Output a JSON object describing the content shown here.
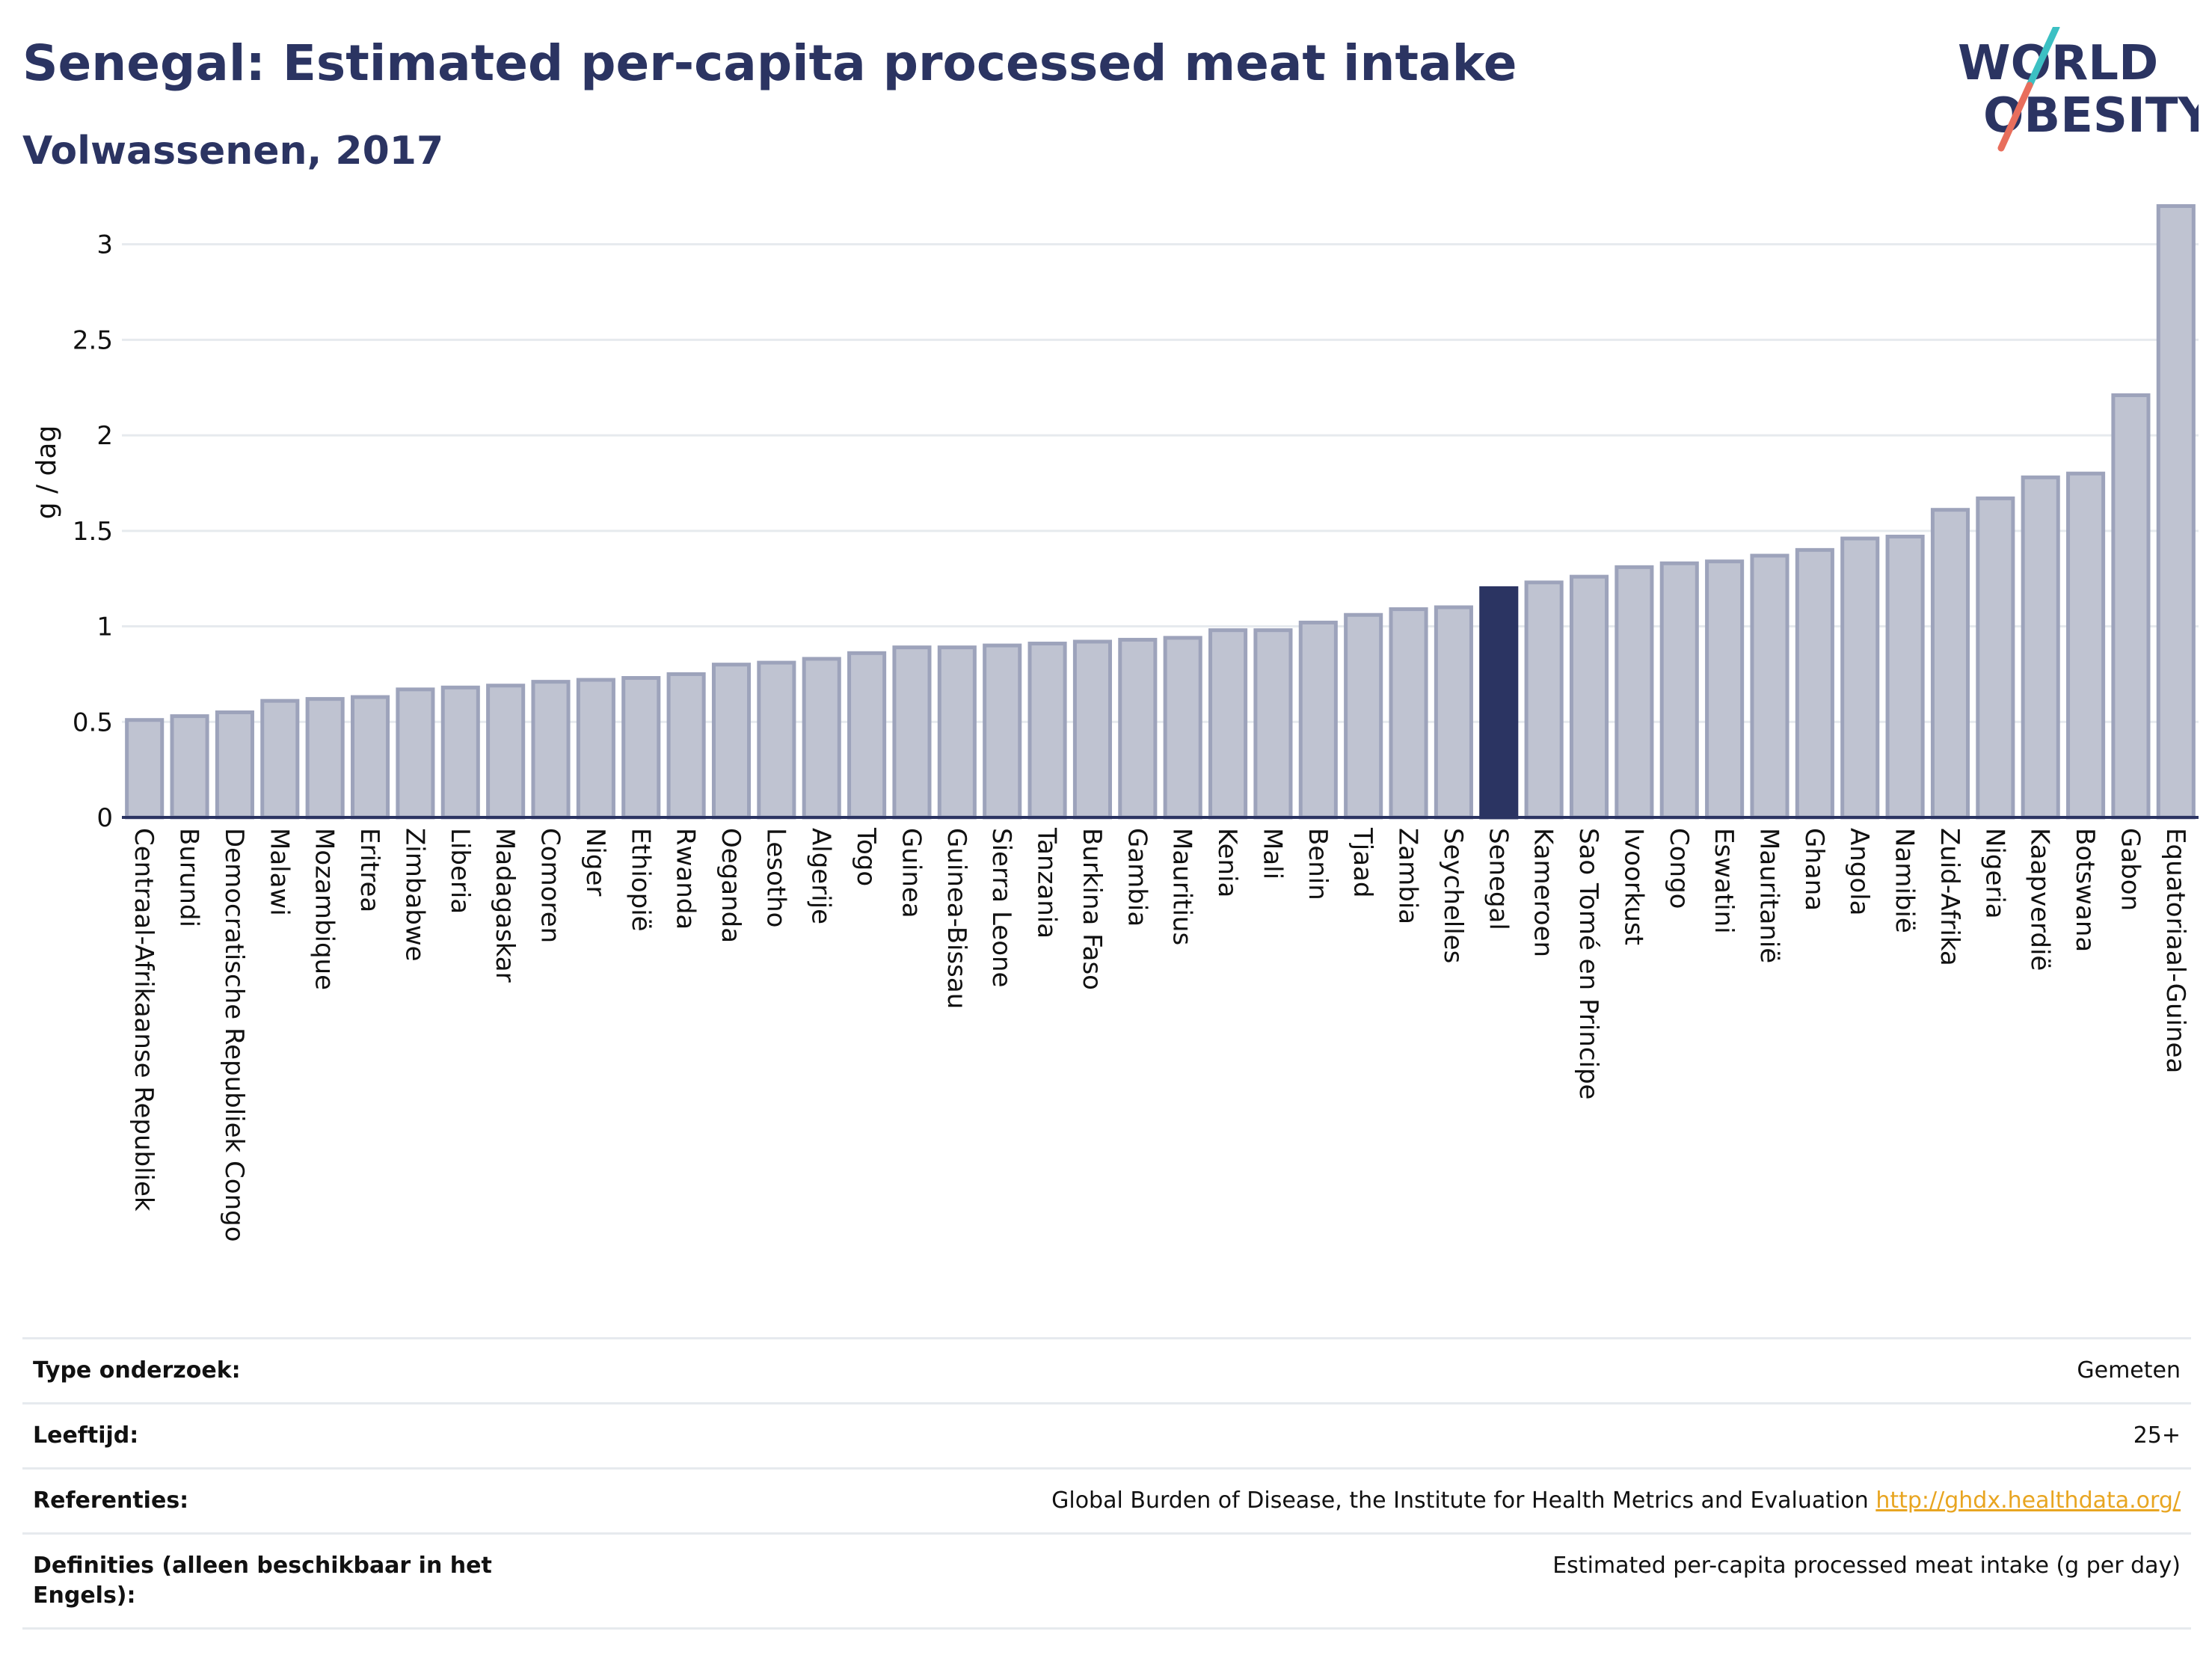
{
  "header": {
    "title": "Senegal: Estimated per-capita processed meat intake",
    "subtitle": "Volwassenen, 2017",
    "logo_line1": "WORLD",
    "logo_line2": "OBESITY"
  },
  "chart_data": {
    "type": "bar",
    "ylabel": "g / dag",
    "xlabel": "",
    "ylim": [
      0,
      3.3
    ],
    "yticks": [
      0,
      0.5,
      1,
      1.5,
      2,
      2.5,
      3
    ],
    "ytick_labels": [
      "0",
      "0.5",
      "1",
      "1.5",
      "2",
      "2.5",
      "3"
    ],
    "grid": true,
    "highlight": "Senegal",
    "colors": {
      "bar": "#bfc3d1",
      "bar_edge": "#9da3bb",
      "highlight": "#2b3462",
      "grid": "#e6eaee",
      "axis": "#2b3462"
    },
    "categories": [
      "Centraal-Afrikaanse Republiek",
      "Burundi",
      "Democratische Republiek Congo",
      "Malawi",
      "Mozambique",
      "Eritrea",
      "Zimbabwe",
      "Liberia",
      "Madagaskar",
      "Comoren",
      "Niger",
      "Ethiopië",
      "Rwanda",
      "Oeganda",
      "Lesotho",
      "Algerije",
      "Togo",
      "Guinea",
      "Guinea-Bissau",
      "Sierra Leone",
      "Tanzania",
      "Burkina Faso",
      "Gambia",
      "Mauritius",
      "Kenia",
      "Mali",
      "Benin",
      "Tjaad",
      "Zambia",
      "Seychelles",
      "Senegal",
      "Kameroen",
      "Sao Tomé en Principe",
      "Ivoorkust",
      "Congo",
      "Eswatini",
      "Mauritanië",
      "Ghana",
      "Angola",
      "Namibië",
      "Zuid-Afrika",
      "Nigeria",
      "Kaapverdië",
      "Botswana",
      "Gabon",
      "Equatoriaal-Guinea"
    ],
    "values": [
      0.51,
      0.53,
      0.55,
      0.61,
      0.62,
      0.63,
      0.67,
      0.68,
      0.69,
      0.71,
      0.72,
      0.73,
      0.75,
      0.8,
      0.81,
      0.83,
      0.86,
      0.89,
      0.89,
      0.9,
      0.91,
      0.92,
      0.93,
      0.94,
      0.98,
      0.98,
      1.02,
      1.06,
      1.09,
      1.1,
      1.2,
      1.23,
      1.26,
      1.31,
      1.33,
      1.34,
      1.37,
      1.4,
      1.46,
      1.47,
      1.61,
      1.67,
      1.78,
      1.8,
      2.21,
      3.2
    ]
  },
  "meta": {
    "type_label": "Type onderzoek:",
    "type_value": "Gemeten",
    "age_label": "Leeftijd:",
    "age_value": "25+",
    "ref_label": "Referenties:",
    "ref_text": "Global Burden of Disease, the Institute for Health Metrics and Evaluation",
    "ref_link": "http://ghdx.healthdata.org/",
    "def_label": "Definities (alleen beschikbaar in het Engels):",
    "def_value": "Estimated per-capita processed meat intake (g per day)"
  }
}
